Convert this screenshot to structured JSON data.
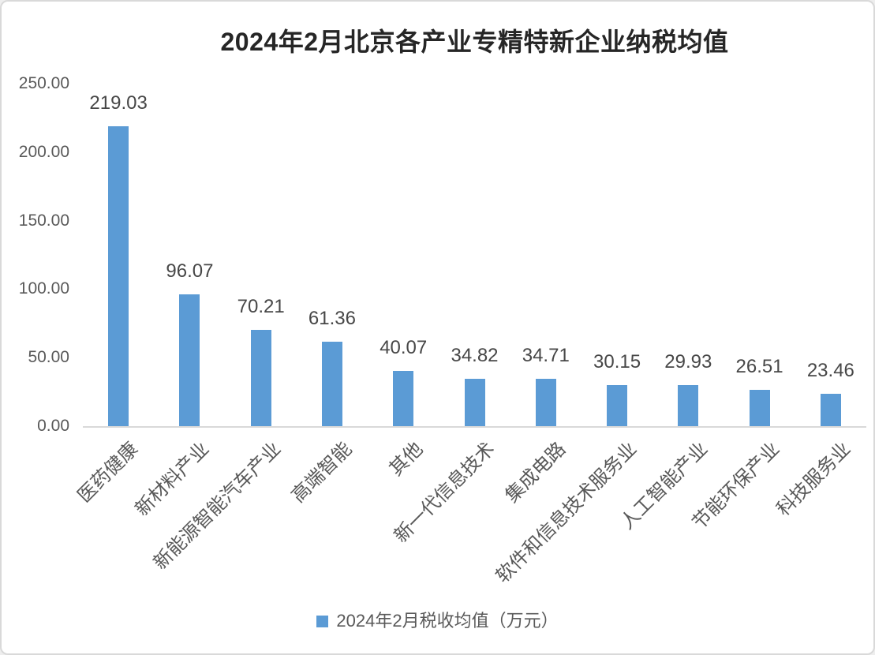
{
  "chart_data": {
    "type": "bar",
    "title": "2024年2月北京各产业专精特新企业纳税均值",
    "categories": [
      "医药健康",
      "新材料产业",
      "新能源智能汽车产业",
      "高端智能",
      "其他",
      "新一代信息技术",
      "集成电路",
      "软件和信息技术服务业",
      "人工智能产业",
      "节能环保产业",
      "科技服务业"
    ],
    "series": [
      {
        "name": "2024年2月税收均值（万元）",
        "values": [
          219.03,
          96.07,
          70.21,
          61.36,
          40.07,
          34.82,
          34.71,
          30.15,
          29.93,
          26.51,
          23.46
        ]
      }
    ],
    "value_labels": [
      "219.03",
      "96.07",
      "70.21",
      "61.36",
      "40.07",
      "34.82",
      "34.71",
      "30.15",
      "29.93",
      "26.51",
      "23.46"
    ],
    "y_ticks": [
      "250.00",
      "200.00",
      "150.00",
      "100.00",
      "50.00",
      "0.00"
    ],
    "ylim": [
      0,
      250
    ],
    "xlabel": "",
    "ylabel": "",
    "grid": false,
    "legend_position": "bottom"
  },
  "style": {
    "bar_color": "#5B9BD5",
    "title_color": "#262626",
    "axis_text_color": "#595959",
    "data_label_color": "#474747",
    "axis_line_color": "#D9D9D9",
    "border_color": "#D9D9D9",
    "background": "#FFFFFF"
  }
}
